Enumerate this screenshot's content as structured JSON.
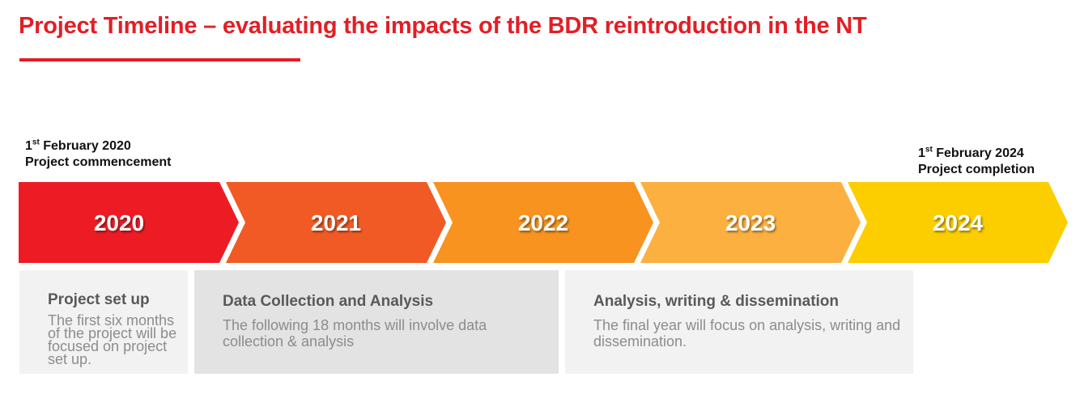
{
  "title": "Project Timeline – evaluating the impacts of the BDR reintroduction in the NT",
  "milestones": {
    "start": {
      "day": "1",
      "suffix": "st",
      "date_rest": " February  2020",
      "label": "Project commencement"
    },
    "end": {
      "day": "1",
      "suffix": "st",
      "date_rest": " February  2024",
      "label": "Project completion"
    }
  },
  "timeline": {
    "years": [
      {
        "label": "2020",
        "color": "#ed1c24"
      },
      {
        "label": "2021",
        "color": "#f15a24"
      },
      {
        "label": "2022",
        "color": "#f7931e"
      },
      {
        "label": "2023",
        "color": "#fbb040"
      },
      {
        "label": "2024",
        "color": "#fcce00"
      }
    ]
  },
  "phases": [
    {
      "title": "Project set up",
      "description": "The first six months of the project will be focused on project set up."
    },
    {
      "title": "Data Collection and Analysis",
      "description": "The following 18 months will involve data collection & analysis"
    },
    {
      "title": "Analysis, writing & dissemination",
      "description": "The final year will focus on analysis, writing and dissemination."
    }
  ]
}
